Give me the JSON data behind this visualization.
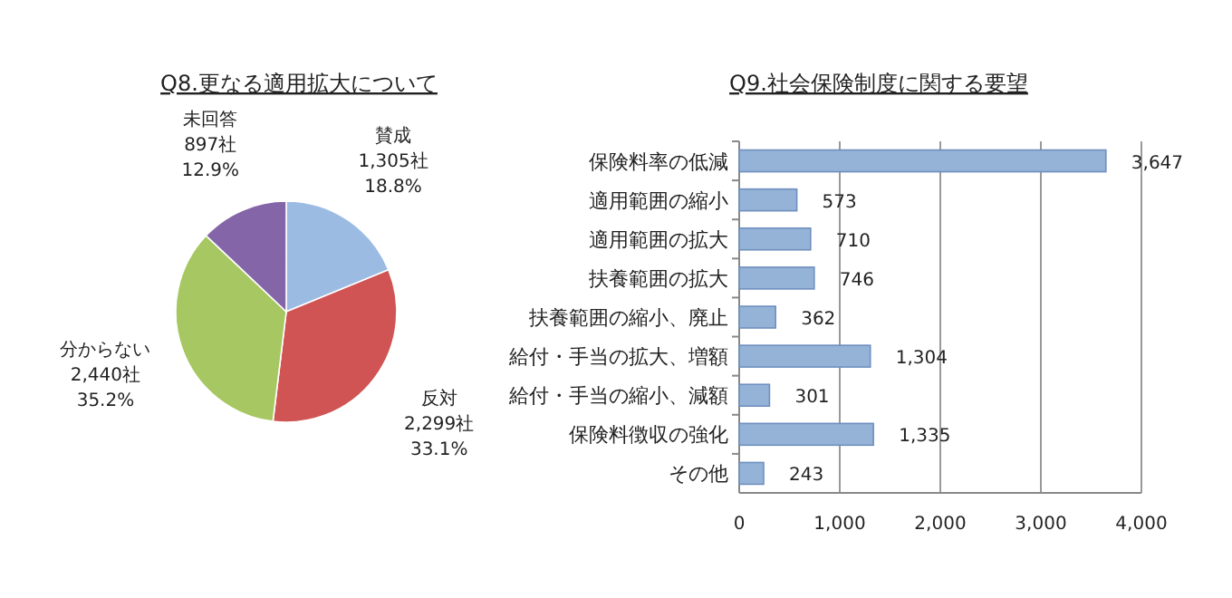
{
  "chart_data": [
    {
      "type": "pie",
      "title": "Q8.更なる適用拡大について",
      "categories": [
        "賛成",
        "反対",
        "分からない",
        "未回答"
      ],
      "values": [
        1305,
        2299,
        2440,
        897
      ],
      "colors": [
        "#9bbbe3",
        "#cf5453",
        "#a6c761",
        "#8466a8"
      ],
      "value_labels": [
        "1,305社 18.8%",
        "2,299社 33.1%",
        "2,440社 35.2%",
        "897社 12.9%"
      ]
    },
    {
      "type": "bar",
      "orientation": "horizontal",
      "title": "Q9.社会保険制度に関する要望",
      "categories": [
        "保険料率の低減",
        "適用範囲の縮小",
        "適用範囲の拡大",
        "扶養範囲の拡大",
        "扶養範囲の縮小、廃止",
        "給付・手当の拡大、増額",
        "給付・手当の縮小、減額",
        "保険料徴収の強化",
        "その他"
      ],
      "values": [
        3647,
        573,
        710,
        746,
        362,
        1304,
        301,
        1335,
        243
      ],
      "color": "#95b3d7",
      "value_labels": [
        "3,647",
        "573",
        "710",
        "746",
        "362",
        "1,304",
        "301",
        "1,335",
        "243"
      ],
      "xlim": [
        0,
        4000
      ],
      "xticks": [
        {
          "value": 0,
          "label": "0"
        },
        {
          "value": 1000,
          "label": "1,000"
        },
        {
          "value": 2000,
          "label": "2,000"
        },
        {
          "value": 3000,
          "label": "3,000"
        },
        {
          "value": 4000,
          "label": "4,000"
        }
      ],
      "grid": "x"
    }
  ]
}
